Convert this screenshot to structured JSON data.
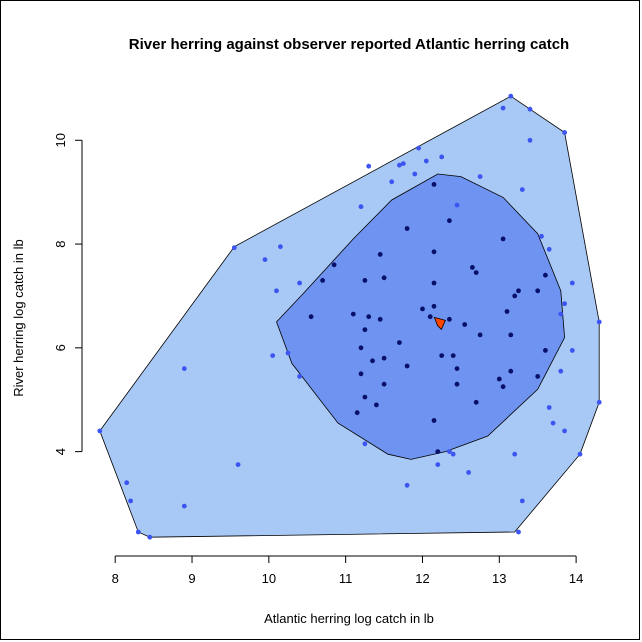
{
  "chart_data": {
    "type": "scatter",
    "title": "River herring against observer reported Atlantic herring catch",
    "xlabel": "Atlantic herring log catch in lb",
    "ylabel": "River herring log catch in lb",
    "xlim": [
      7.75,
      14.35
    ],
    "ylim": [
      2.2,
      10.95
    ],
    "xticks": [
      8,
      9,
      10,
      11,
      12,
      13,
      14
    ],
    "yticks": [
      4,
      6,
      8,
      10
    ],
    "grid": false,
    "colors": {
      "outer_fill": "#a8c8f5",
      "inner_fill": "#6f93f0",
      "outer_point": "#3c55f2",
      "inner_point": "#08106a",
      "median_marker": "#ff4500"
    },
    "outer_hull": [
      [
        7.8,
        4.4
      ],
      [
        9.55,
        7.95
      ],
      [
        13.15,
        10.85
      ],
      [
        13.85,
        10.15
      ],
      [
        14.3,
        6.5
      ],
      [
        14.3,
        4.95
      ],
      [
        14.05,
        3.95
      ],
      [
        13.2,
        2.45
      ],
      [
        8.45,
        2.35
      ],
      [
        8.3,
        2.45
      ]
    ],
    "inner_hull": [
      [
        10.1,
        6.5
      ],
      [
        10.45,
        7.05
      ],
      [
        11.1,
        8.1
      ],
      [
        11.6,
        8.85
      ],
      [
        12.2,
        9.35
      ],
      [
        12.5,
        9.3
      ],
      [
        13.05,
        8.9
      ],
      [
        13.5,
        8.2
      ],
      [
        13.8,
        7.1
      ],
      [
        13.85,
        6.2
      ],
      [
        13.5,
        5.2
      ],
      [
        12.85,
        4.3
      ],
      [
        12.3,
        4.0
      ],
      [
        11.85,
        3.85
      ],
      [
        11.55,
        3.95
      ],
      [
        10.9,
        4.55
      ],
      [
        10.3,
        5.7
      ]
    ],
    "series": [
      {
        "name": "",
        "points": [
          [
            13.15,
            10.85
          ],
          [
            13.05,
            10.62
          ],
          [
            13.4,
            10.6
          ],
          [
            13.85,
            10.15
          ],
          [
            13.4,
            10.0
          ],
          [
            11.95,
            9.85
          ],
          [
            12.05,
            9.6
          ],
          [
            12.25,
            9.68
          ],
          [
            11.7,
            9.52
          ],
          [
            11.75,
            9.55
          ],
          [
            11.3,
            9.5
          ],
          [
            11.9,
            9.35
          ],
          [
            12.75,
            9.3
          ],
          [
            13.3,
            9.05
          ],
          [
            11.6,
            9.2
          ],
          [
            11.2,
            8.72
          ],
          [
            12.45,
            8.75
          ],
          [
            13.55,
            8.15
          ],
          [
            13.65,
            7.9
          ],
          [
            10.15,
            7.95
          ],
          [
            9.55,
            7.93
          ],
          [
            9.95,
            7.7
          ],
          [
            10.4,
            7.25
          ],
          [
            10.1,
            7.1
          ],
          [
            10.25,
            5.9
          ],
          [
            10.05,
            5.85
          ],
          [
            10.4,
            5.45
          ],
          [
            13.95,
            7.25
          ],
          [
            13.85,
            6.85
          ],
          [
            13.8,
            6.65
          ],
          [
            14.3,
            6.5
          ],
          [
            13.95,
            5.95
          ],
          [
            14.3,
            4.95
          ],
          [
            13.8,
            5.55
          ],
          [
            13.7,
            4.55
          ],
          [
            13.65,
            4.85
          ],
          [
            13.85,
            4.4
          ],
          [
            14.05,
            3.95
          ],
          [
            13.2,
            3.95
          ],
          [
            13.3,
            3.05
          ],
          [
            13.25,
            2.45
          ],
          [
            12.6,
            3.6
          ],
          [
            12.2,
            3.75
          ],
          [
            12.4,
            3.95
          ],
          [
            11.8,
            3.35
          ],
          [
            12.35,
            4.0
          ],
          [
            11.25,
            4.15
          ],
          [
            9.6,
            3.75
          ],
          [
            8.9,
            5.6
          ],
          [
            8.9,
            2.95
          ],
          [
            7.8,
            4.4
          ],
          [
            8.15,
            3.4
          ],
          [
            8.2,
            3.05
          ],
          [
            8.3,
            2.45
          ],
          [
            8.45,
            2.35
          ]
        ]
      },
      {
        "name": "",
        "points": [
          [
            12.15,
            9.15
          ],
          [
            12.35,
            8.45
          ],
          [
            11.8,
            8.3
          ],
          [
            13.05,
            8.1
          ],
          [
            12.15,
            7.85
          ],
          [
            11.45,
            7.8
          ],
          [
            10.85,
            7.6
          ],
          [
            12.65,
            7.55
          ],
          [
            12.7,
            7.45
          ],
          [
            13.6,
            7.4
          ],
          [
            11.5,
            7.35
          ],
          [
            11.25,
            7.3
          ],
          [
            10.7,
            7.3
          ],
          [
            12.15,
            7.25
          ],
          [
            13.5,
            7.1
          ],
          [
            13.25,
            7.1
          ],
          [
            13.2,
            7.0
          ],
          [
            12.15,
            6.8
          ],
          [
            12.0,
            6.75
          ],
          [
            13.1,
            6.7
          ],
          [
            11.1,
            6.65
          ],
          [
            10.55,
            6.6
          ],
          [
            11.3,
            6.6
          ],
          [
            11.45,
            6.55
          ],
          [
            12.1,
            6.6
          ],
          [
            12.35,
            6.55
          ],
          [
            12.55,
            6.45
          ],
          [
            11.25,
            6.35
          ],
          [
            12.75,
            6.25
          ],
          [
            13.15,
            6.25
          ],
          [
            11.7,
            6.1
          ],
          [
            11.2,
            6.0
          ],
          [
            13.6,
            5.95
          ],
          [
            11.5,
            5.8
          ],
          [
            12.25,
            5.85
          ],
          [
            12.4,
            5.85
          ],
          [
            11.35,
            5.75
          ],
          [
            11.8,
            5.65
          ],
          [
            12.45,
            5.6
          ],
          [
            13.15,
            5.55
          ],
          [
            11.2,
            5.5
          ],
          [
            13.5,
            5.45
          ],
          [
            13.0,
            5.4
          ],
          [
            11.5,
            5.3
          ],
          [
            12.45,
            5.3
          ],
          [
            13.05,
            5.25
          ],
          [
            11.25,
            5.05
          ],
          [
            12.7,
            4.95
          ],
          [
            11.4,
            4.9
          ],
          [
            11.15,
            4.75
          ],
          [
            12.15,
            4.6
          ],
          [
            12.2,
            4.0
          ]
        ]
      }
    ],
    "median": [
      12.22,
      6.47
    ]
  }
}
